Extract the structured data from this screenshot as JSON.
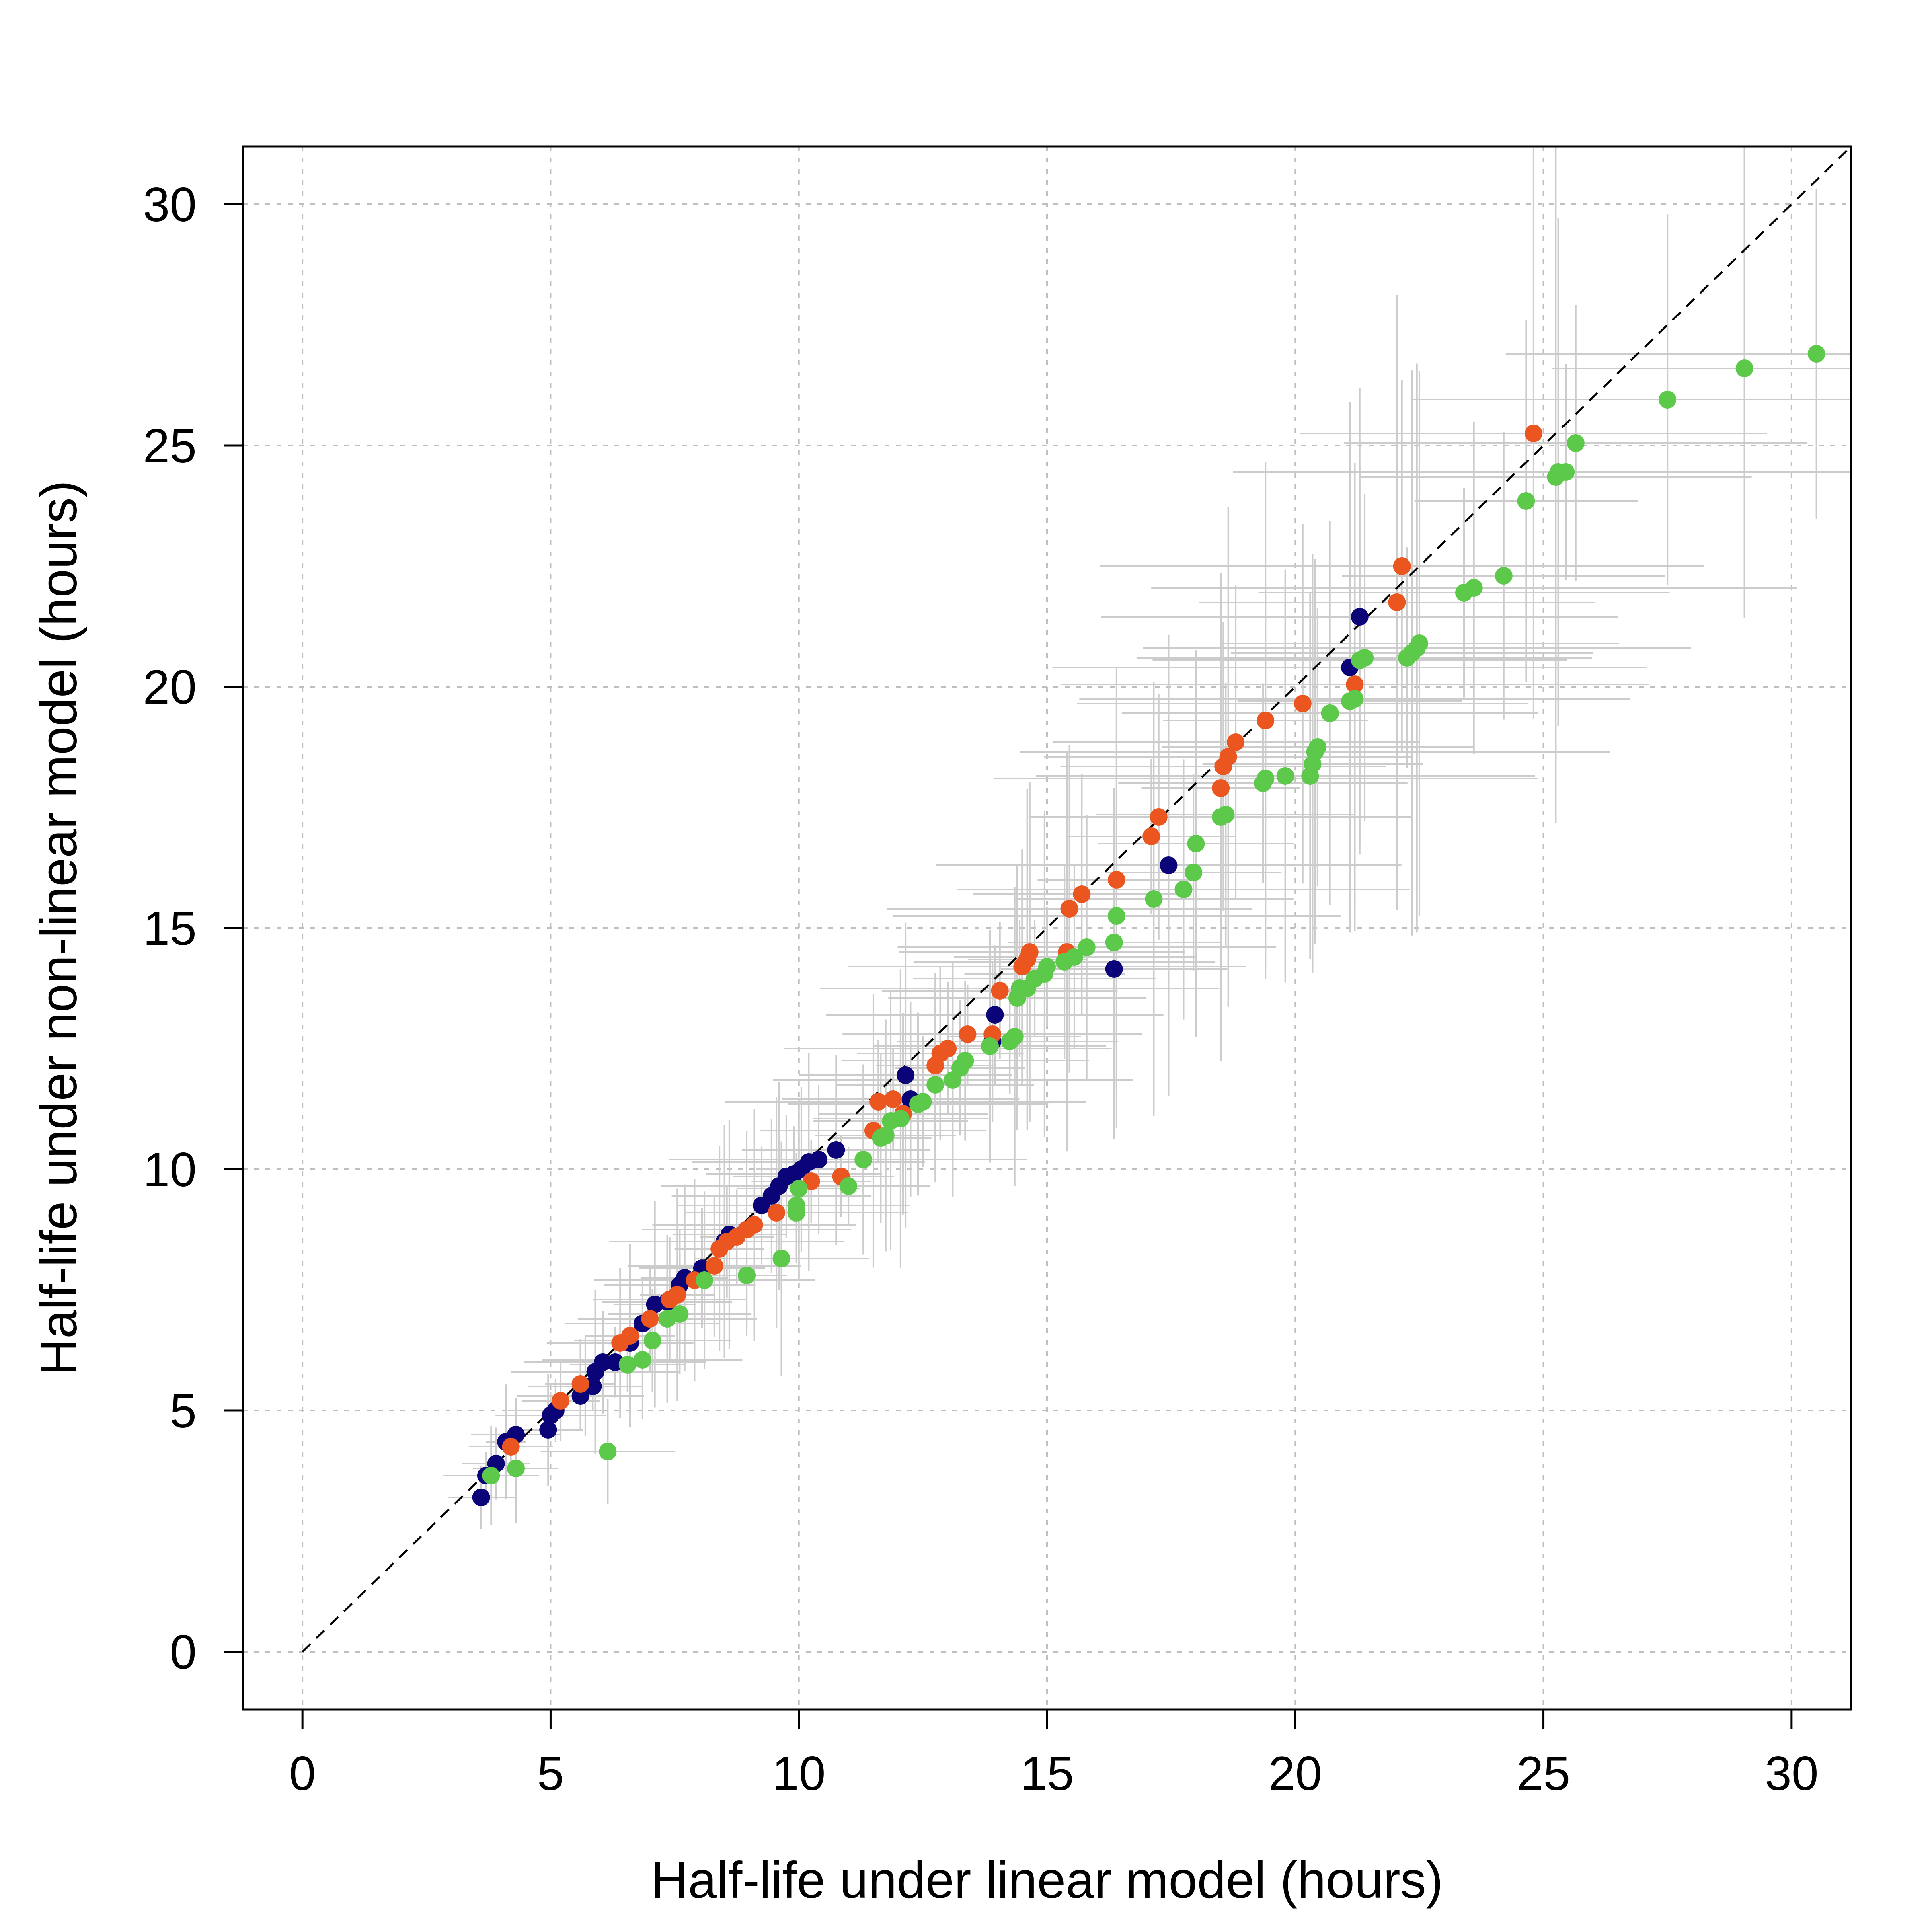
{
  "chart_data": {
    "type": "scatter",
    "title": "",
    "xlabel": "Half-life under linear model (hours)",
    "ylabel": "Half-life under non-linear model (hours)",
    "xlim": [
      -1.2,
      31.2
    ],
    "ylim": [
      -1.2,
      31.2
    ],
    "xticks": [
      "0",
      "5",
      "10",
      "15",
      "20",
      "25",
      "30"
    ],
    "yticks": [
      "0",
      "5",
      "10",
      "15",
      "20",
      "25",
      "30"
    ],
    "grid": true,
    "reference_line": "y = x",
    "colors": {
      "series_1": "#0a0478",
      "series_2": "#ea5520",
      "series_3": "#5cc94a",
      "error_bars": "#cccccc",
      "grid": "#bfbfbf"
    },
    "series": [
      {
        "color": "#0a0478",
        "points": [
          [
            3.6,
            3.2
          ],
          [
            3.7,
            3.65
          ],
          [
            3.9,
            3.9
          ],
          [
            4.1,
            4.35
          ],
          [
            4.3,
            4.5
          ],
          [
            4.95,
            4.6
          ],
          [
            5.0,
            4.9
          ],
          [
            5.1,
            5.0
          ],
          [
            5.6,
            5.3
          ],
          [
            5.7,
            5.5
          ],
          [
            5.85,
            5.5
          ],
          [
            5.9,
            5.8
          ],
          [
            6.05,
            6.0
          ],
          [
            6.3,
            6.0
          ],
          [
            6.6,
            6.4
          ],
          [
            6.85,
            6.8
          ],
          [
            7.1,
            7.2
          ],
          [
            7.35,
            7.25
          ],
          [
            7.6,
            7.6
          ],
          [
            7.7,
            7.75
          ],
          [
            8.05,
            7.95
          ],
          [
            8.5,
            8.5
          ],
          [
            8.6,
            8.65
          ],
          [
            9.25,
            9.25
          ],
          [
            9.45,
            9.45
          ],
          [
            9.6,
            9.65
          ],
          [
            9.75,
            9.85
          ],
          [
            9.9,
            9.9
          ],
          [
            10.05,
            10.0
          ],
          [
            10.2,
            10.15
          ],
          [
            10.4,
            10.2
          ],
          [
            10.75,
            10.4
          ],
          [
            12.15,
            11.95
          ],
          [
            12.25,
            11.45
          ],
          [
            13.9,
            12.65
          ],
          [
            13.95,
            13.2
          ],
          [
            16.35,
            14.15
          ],
          [
            17.45,
            16.3
          ],
          [
            21.1,
            20.4
          ],
          [
            21.3,
            21.45
          ]
        ]
      },
      {
        "color": "#ea5520",
        "points": [
          [
            4.2,
            4.25
          ],
          [
            5.2,
            5.2
          ],
          [
            5.6,
            5.55
          ],
          [
            6.4,
            6.4
          ],
          [
            6.6,
            6.55
          ],
          [
            7.0,
            6.9
          ],
          [
            7.4,
            7.3
          ],
          [
            7.55,
            7.4
          ],
          [
            7.9,
            7.7
          ],
          [
            8.3,
            8.0
          ],
          [
            8.4,
            8.35
          ],
          [
            8.55,
            8.5
          ],
          [
            8.75,
            8.6
          ],
          [
            8.95,
            8.75
          ],
          [
            9.1,
            8.85
          ],
          [
            9.55,
            9.1
          ],
          [
            10.25,
            9.75
          ],
          [
            10.85,
            9.85
          ],
          [
            11.5,
            10.8
          ],
          [
            11.6,
            11.4
          ],
          [
            11.9,
            11.45
          ],
          [
            12.1,
            11.15
          ],
          [
            12.75,
            12.15
          ],
          [
            12.85,
            12.4
          ],
          [
            13.0,
            12.5
          ],
          [
            13.4,
            12.8
          ],
          [
            13.9,
            12.8
          ],
          [
            14.05,
            13.7
          ],
          [
            14.5,
            14.2
          ],
          [
            14.6,
            14.35
          ],
          [
            14.65,
            14.5
          ],
          [
            15.4,
            14.5
          ],
          [
            15.45,
            15.4
          ],
          [
            15.7,
            15.7
          ],
          [
            16.4,
            16.0
          ],
          [
            17.1,
            16.9
          ],
          [
            17.25,
            17.3
          ],
          [
            18.5,
            17.9
          ],
          [
            18.55,
            18.35
          ],
          [
            18.65,
            18.55
          ],
          [
            18.8,
            18.85
          ],
          [
            19.4,
            19.3
          ],
          [
            20.15,
            19.65
          ],
          [
            21.2,
            20.05
          ],
          [
            22.05,
            21.75
          ],
          [
            22.15,
            22.5
          ],
          [
            24.8,
            25.25
          ]
        ]
      },
      {
        "color": "#5cc94a",
        "points": [
          [
            3.8,
            3.65
          ],
          [
            4.3,
            3.8
          ],
          [
            6.15,
            4.15
          ],
          [
            6.55,
            5.95
          ],
          [
            6.85,
            6.05
          ],
          [
            7.05,
            6.45
          ],
          [
            7.35,
            6.9
          ],
          [
            7.6,
            7.0
          ],
          [
            8.1,
            7.7
          ],
          [
            8.95,
            7.8
          ],
          [
            9.65,
            8.15
          ],
          [
            9.95,
            9.1
          ],
          [
            9.95,
            9.25
          ],
          [
            10.0,
            9.6
          ],
          [
            11.0,
            9.65
          ],
          [
            11.3,
            10.2
          ],
          [
            11.65,
            10.65
          ],
          [
            11.75,
            10.7
          ],
          [
            11.85,
            11.0
          ],
          [
            12.05,
            11.05
          ],
          [
            12.4,
            11.35
          ],
          [
            12.5,
            11.4
          ],
          [
            12.75,
            11.75
          ],
          [
            13.1,
            11.85
          ],
          [
            13.25,
            12.1
          ],
          [
            13.35,
            12.25
          ],
          [
            13.85,
            12.55
          ],
          [
            14.25,
            12.65
          ],
          [
            14.35,
            12.75
          ],
          [
            14.4,
            13.55
          ],
          [
            14.45,
            13.75
          ],
          [
            14.6,
            13.75
          ],
          [
            14.75,
            13.95
          ],
          [
            14.95,
            14.05
          ],
          [
            15.0,
            14.2
          ],
          [
            15.35,
            14.3
          ],
          [
            15.55,
            14.4
          ],
          [
            15.8,
            14.6
          ],
          [
            16.35,
            14.7
          ],
          [
            16.4,
            15.25
          ],
          [
            17.15,
            15.6
          ],
          [
            17.75,
            15.8
          ],
          [
            17.95,
            16.15
          ],
          [
            18.0,
            16.75
          ],
          [
            18.5,
            17.3
          ],
          [
            18.6,
            17.35
          ],
          [
            19.35,
            18.0
          ],
          [
            19.4,
            18.1
          ],
          [
            19.8,
            18.15
          ],
          [
            20.3,
            18.15
          ],
          [
            20.35,
            18.4
          ],
          [
            20.4,
            18.65
          ],
          [
            20.45,
            18.75
          ],
          [
            20.7,
            19.45
          ],
          [
            21.1,
            19.7
          ],
          [
            21.2,
            19.75
          ],
          [
            21.3,
            20.55
          ],
          [
            21.4,
            20.6
          ],
          [
            22.25,
            20.6
          ],
          [
            22.35,
            20.7
          ],
          [
            22.45,
            20.8
          ],
          [
            22.5,
            20.9
          ],
          [
            23.4,
            21.95
          ],
          [
            23.6,
            22.05
          ],
          [
            24.2,
            22.3
          ],
          [
            24.65,
            23.85
          ],
          [
            25.25,
            24.35
          ],
          [
            25.3,
            24.45
          ],
          [
            25.45,
            24.45
          ],
          [
            25.65,
            25.05
          ],
          [
            27.5,
            25.95
          ],
          [
            29.05,
            26.6
          ],
          [
            30.5,
            26.9
          ]
        ]
      }
    ]
  }
}
